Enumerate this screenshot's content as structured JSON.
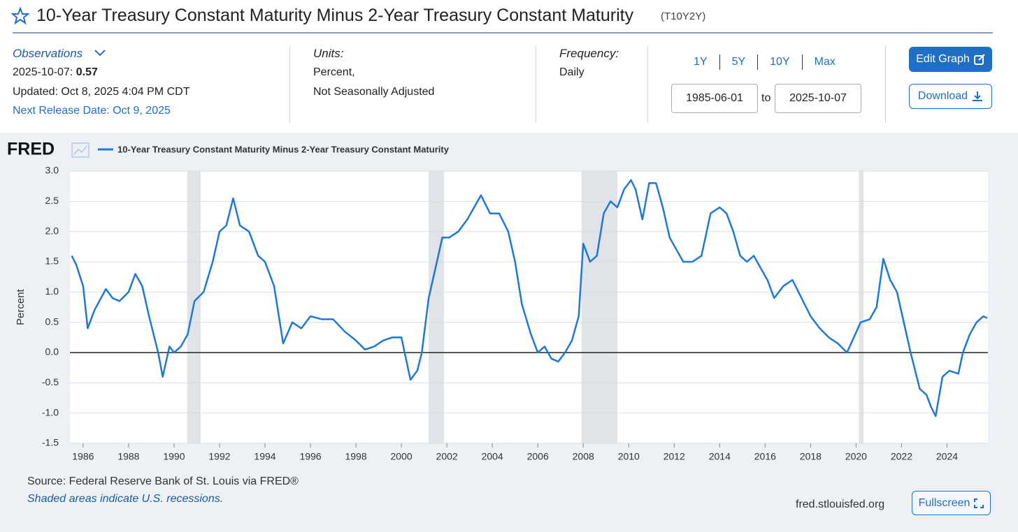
{
  "header": {
    "title": "10-Year Treasury Constant Maturity Minus 2-Year Treasury Constant Maturity",
    "series_id": "(T10Y2Y)"
  },
  "observations": {
    "label": "Observations",
    "date": "2025-10-07:",
    "value": "0.57",
    "updated": "Updated: Oct 8, 2025 4:04 PM CDT",
    "next_release": "Next Release Date: Oct 9, 2025"
  },
  "units": {
    "label": "Units:",
    "lines": [
      "Percent,",
      "Not Seasonally Adjusted"
    ]
  },
  "frequency": {
    "label": "Frequency:",
    "value": "Daily"
  },
  "range_buttons": [
    "1Y",
    "5Y",
    "10Y",
    "Max"
  ],
  "date_range": {
    "start": "1985-06-01",
    "separator": "to",
    "end": "2025-10-07"
  },
  "buttons": {
    "edit": "Edit Graph",
    "download": "Download",
    "fullscreen": "Fullscreen"
  },
  "footer_url": "fred.stlouisfed.org",
  "chart_data": {
    "type": "line",
    "logo": "FRED",
    "ylabel": "Percent",
    "source": "Source: Federal Reserve Bank of St. Louis via FRED®",
    "note": "Shaded areas indicate U.S. recessions.",
    "x": [
      1985.5,
      1985.7,
      1986.0,
      1986.2,
      1986.5,
      1987.0,
      1987.3,
      1987.6,
      1988.0,
      1988.3,
      1988.6,
      1988.9,
      1989.3,
      1989.5,
      1989.8,
      1990.0,
      1990.3,
      1990.6,
      1990.9,
      1991.3,
      1991.7,
      1992.0,
      1992.3,
      1992.6,
      1992.9,
      1993.3,
      1993.7,
      1994.0,
      1994.4,
      1994.8,
      1995.2,
      1995.6,
      1996.0,
      1996.5,
      1997.0,
      1997.5,
      1998.0,
      1998.4,
      1998.8,
      1999.2,
      1999.6,
      2000.0,
      2000.2,
      2000.4,
      2000.7,
      2000.9,
      2001.2,
      2001.5,
      2001.8,
      2002.1,
      2002.5,
      2002.9,
      2003.2,
      2003.5,
      2003.9,
      2004.3,
      2004.7,
      2005.0,
      2005.3,
      2005.7,
      2006.0,
      2006.3,
      2006.6,
      2006.9,
      2007.2,
      2007.5,
      2007.8,
      2008.0,
      2008.3,
      2008.6,
      2008.9,
      2009.2,
      2009.5,
      2009.8,
      2010.1,
      2010.3,
      2010.6,
      2010.9,
      2011.2,
      2011.5,
      2011.8,
      2012.1,
      2012.4,
      2012.8,
      2013.2,
      2013.6,
      2014.0,
      2014.3,
      2014.6,
      2014.9,
      2015.2,
      2015.5,
      2015.8,
      2016.1,
      2016.4,
      2016.8,
      2017.2,
      2017.6,
      2018.0,
      2018.4,
      2018.8,
      2019.2,
      2019.6,
      2019.9,
      2020.2,
      2020.6,
      2020.9,
      2021.2,
      2021.5,
      2021.8,
      2022.1,
      2022.4,
      2022.8,
      2023.1,
      2023.3,
      2023.5,
      2023.8,
      2024.1,
      2024.5,
      2024.7,
      2025.0,
      2025.3,
      2025.6,
      2025.77
    ],
    "series": [
      {
        "name": "10-Year Treasury Constant Maturity Minus 2-Year Treasury Constant Maturity",
        "color": "#1f78d1",
        "values": [
          1.6,
          1.45,
          1.1,
          0.4,
          0.7,
          1.05,
          0.9,
          0.85,
          1.0,
          1.3,
          1.1,
          0.6,
          0.0,
          -0.4,
          0.1,
          0.0,
          0.1,
          0.3,
          0.85,
          1.0,
          1.5,
          2.0,
          2.1,
          2.55,
          2.1,
          2.0,
          1.6,
          1.5,
          1.1,
          0.15,
          0.5,
          0.4,
          0.6,
          0.55,
          0.55,
          0.35,
          0.2,
          0.05,
          0.1,
          0.2,
          0.25,
          0.25,
          -0.1,
          -0.45,
          -0.3,
          0.0,
          0.9,
          1.4,
          1.9,
          1.9,
          2.0,
          2.2,
          2.4,
          2.6,
          2.3,
          2.3,
          2.0,
          1.5,
          0.8,
          0.3,
          0.0,
          0.1,
          -0.1,
          -0.15,
          0.0,
          0.2,
          0.6,
          1.8,
          1.5,
          1.6,
          2.3,
          2.5,
          2.4,
          2.7,
          2.85,
          2.7,
          2.2,
          2.8,
          2.8,
          2.4,
          1.9,
          1.7,
          1.5,
          1.5,
          1.6,
          2.3,
          2.4,
          2.3,
          2.0,
          1.6,
          1.5,
          1.6,
          1.4,
          1.2,
          0.9,
          1.1,
          1.2,
          0.9,
          0.6,
          0.4,
          0.25,
          0.15,
          0.0,
          0.25,
          0.5,
          0.55,
          0.75,
          1.55,
          1.2,
          1.0,
          0.5,
          0.0,
          -0.6,
          -0.7,
          -0.9,
          -1.05,
          -0.4,
          -0.3,
          -0.35,
          0.0,
          0.3,
          0.5,
          0.6,
          0.57
        ]
      }
    ],
    "recessions": [
      [
        1990.58,
        1991.17
      ],
      [
        2001.2,
        2001.87
      ],
      [
        2007.92,
        2009.5
      ],
      [
        2020.12,
        2020.33
      ]
    ],
    "recession_color": "#e0e3e8",
    "xlim": [
      1985.42,
      2025.8
    ],
    "ylim": [
      -1.5,
      3.0
    ],
    "xticks": [
      1986,
      1988,
      1990,
      1992,
      1994,
      1996,
      1998,
      2000,
      2002,
      2004,
      2006,
      2008,
      2010,
      2012,
      2014,
      2016,
      2018,
      2020,
      2022,
      2024
    ],
    "yticks": [
      {
        "value": -1.5,
        "label": "-1.5"
      },
      {
        "value": -1,
        "label": "-1.0"
      },
      {
        "value": -0.5,
        "label": "-0.5"
      },
      {
        "value": 0,
        "label": "0.0"
      },
      {
        "value": 0.5,
        "label": "0.5"
      },
      {
        "value": 1,
        "label": "1.0"
      },
      {
        "value": 1.5,
        "label": "1.5"
      },
      {
        "value": 2,
        "label": "2.0"
      },
      {
        "value": 2.5,
        "label": "2.5"
      },
      {
        "value": 3,
        "label": "3.0"
      }
    ],
    "grid": true,
    "zero_line": true
  }
}
